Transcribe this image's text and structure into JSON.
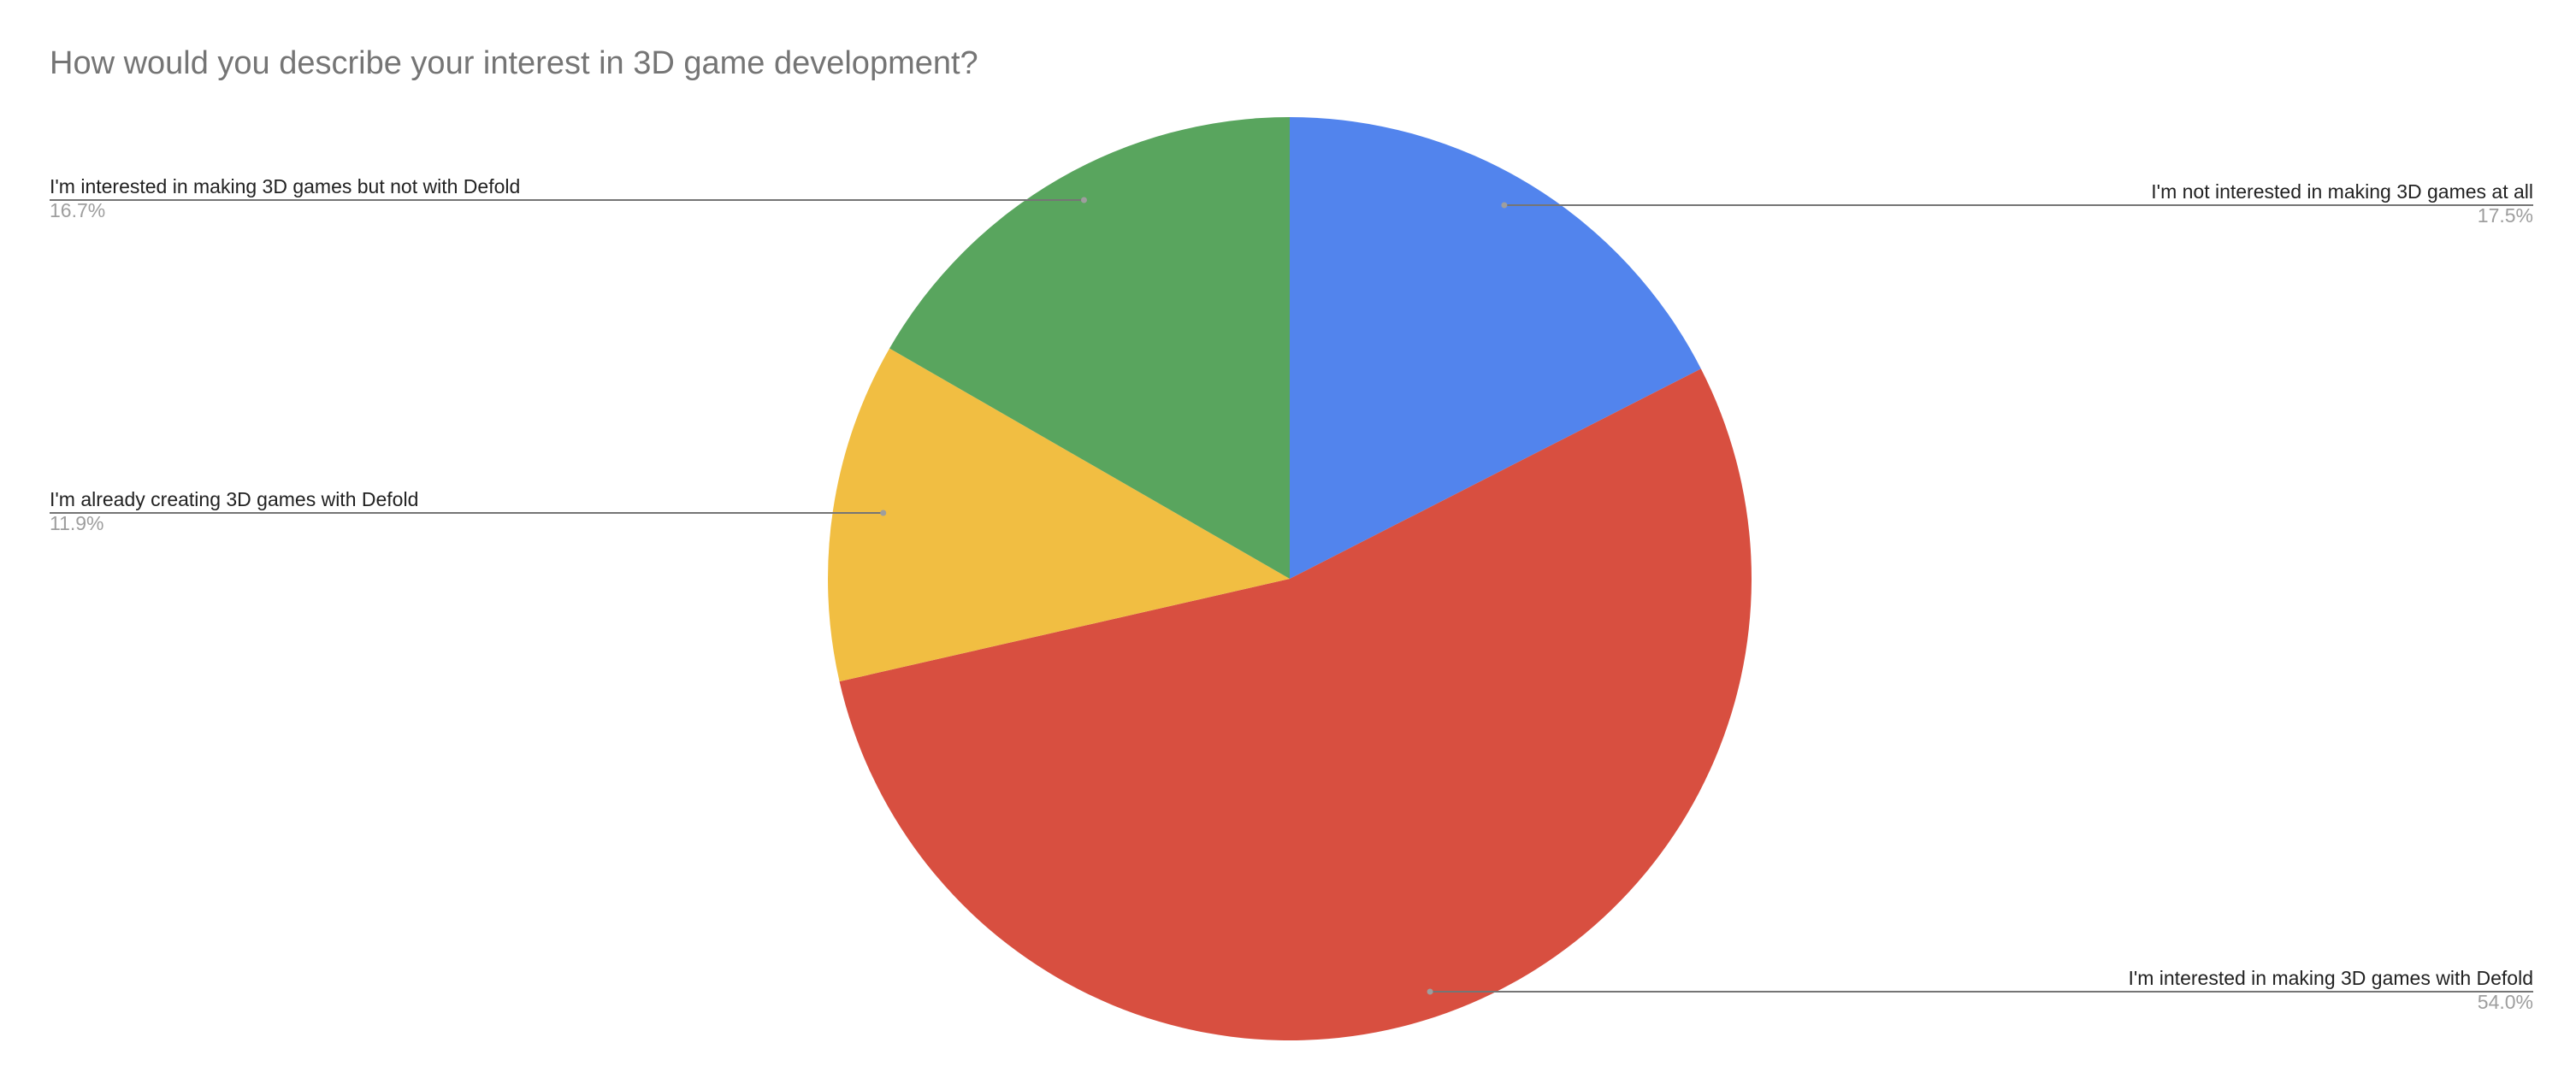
{
  "chart_data": {
    "type": "pie",
    "title": "How would you describe your interest in 3D game development?",
    "slices": [
      {
        "label": "I'm not interested in making 3D games at all",
        "value": 17.5,
        "display": "17.5%",
        "color": "#5284ED"
      },
      {
        "label": "I'm interested in making 3D games with Defold",
        "value": 54.0,
        "display": "54.0%",
        "color": "#D84F40"
      },
      {
        "label": "I'm already creating 3D games with Defold",
        "value": 11.9,
        "display": "11.9%",
        "color": "#F1BE42"
      },
      {
        "label": "I'm interested in making 3D games but not with Defold",
        "value": 16.7,
        "display": "16.7%",
        "color": "#59A55E"
      }
    ],
    "start_angle": "12 o'clock",
    "direction": "clockwise",
    "legend": "none (direct labels)"
  }
}
